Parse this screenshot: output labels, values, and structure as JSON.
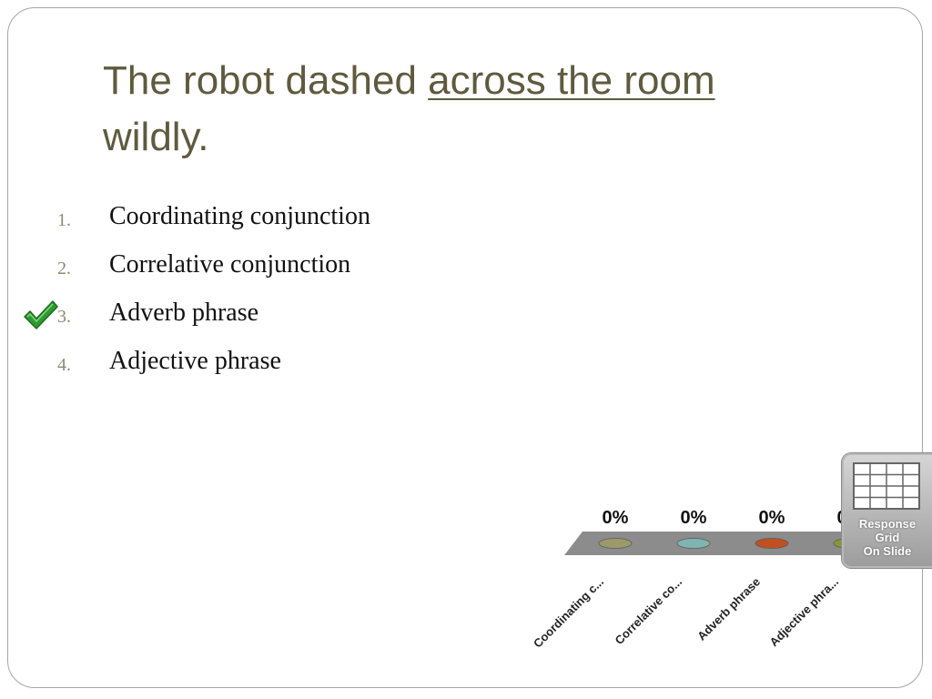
{
  "slide": {
    "title_prefix": "The robot dashed ",
    "title_underlined": "across the room",
    "title_suffix": "wildly."
  },
  "options": [
    {
      "number": "1.",
      "label": "Coordinating conjunction",
      "correct": false
    },
    {
      "number": "2.",
      "label": "Correlative conjunction",
      "correct": false
    },
    {
      "number": "3.",
      "label": "Adverb phrase",
      "correct": true
    },
    {
      "number": "4.",
      "label": "Adjective phrase",
      "correct": false
    }
  ],
  "correct_marker_icon": "checkmark-icon",
  "chart_data": {
    "type": "bar",
    "categories": [
      "Coordinating c...",
      "Correlative co...",
      "Adverb phrase",
      "Adjective phra..."
    ],
    "values": [
      0,
      0,
      0,
      0
    ],
    "value_labels": [
      "0%",
      "0%",
      "0%",
      "0%"
    ],
    "marker_colors": [
      "#9c9a6a",
      "#7fb5b0",
      "#c0501f",
      "#8a9a2a"
    ],
    "ylim": [
      0,
      100
    ]
  },
  "response_grid": {
    "icon": "grid-icon",
    "line1": "Response",
    "line2": "Grid",
    "line3": "On Slide"
  }
}
